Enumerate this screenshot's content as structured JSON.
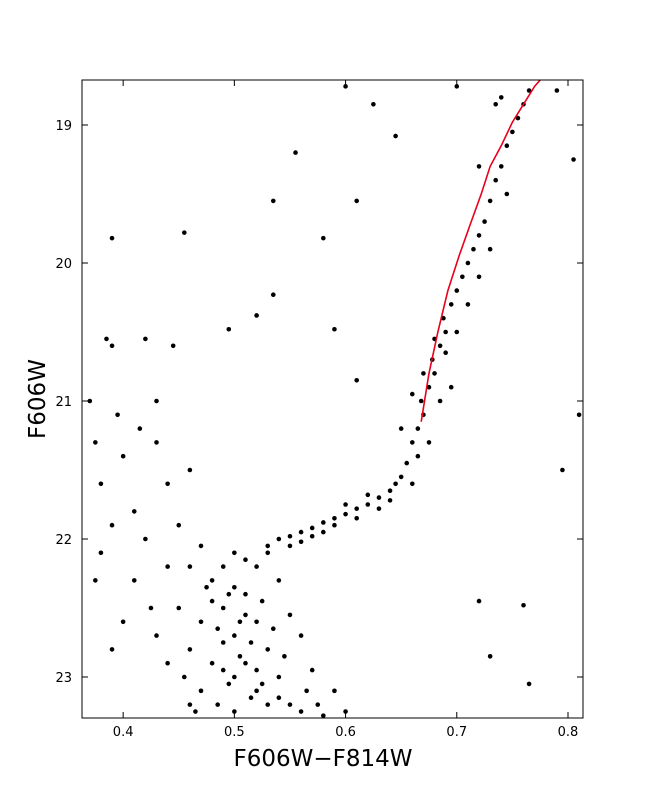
{
  "chart_data": {
    "type": "scatter",
    "x_label": "F606W−F814W",
    "y_label": "F606W",
    "xlim": [
      0.363,
      0.8135
    ],
    "ylim": [
      23.297,
      18.674
    ],
    "xticks": [
      0.4,
      0.5,
      0.6,
      0.7,
      0.8
    ],
    "yticks": [
      19,
      20,
      21,
      22,
      23
    ],
    "series": [
      {
        "color": "#000000",
        "x": [
          0.48,
          0.49,
          0.5,
          0.51,
          0.52,
          0.47,
          0.46,
          0.5,
          0.53,
          0.49,
          0.51,
          0.52,
          0.48,
          0.47,
          0.5,
          0.54,
          0.55,
          0.56,
          0.53,
          0.45,
          0.46,
          0.5,
          0.52,
          0.54,
          0.49,
          0.51,
          0.48,
          0.505,
          0.495,
          0.515,
          0.485,
          0.475,
          0.525,
          0.535,
          0.545,
          0.565,
          0.575,
          0.58,
          0.44,
          0.455,
          0.465,
          0.49,
          0.5,
          0.51,
          0.53,
          0.47,
          0.56,
          0.57,
          0.52,
          0.505,
          0.495,
          0.485,
          0.515,
          0.525,
          0.54,
          0.6,
          0.59,
          0.43,
          0.46,
          0.55,
          0.53,
          0.54,
          0.55,
          0.56,
          0.57,
          0.58,
          0.59,
          0.6,
          0.61,
          0.62,
          0.63,
          0.64,
          0.645,
          0.55,
          0.57,
          0.59,
          0.61,
          0.63,
          0.6,
          0.62,
          0.65,
          0.66,
          0.64,
          0.58,
          0.56,
          0.655,
          0.66,
          0.665,
          0.67,
          0.668,
          0.675,
          0.68,
          0.678,
          0.685,
          0.69,
          0.688,
          0.695,
          0.7,
          0.705,
          0.71,
          0.715,
          0.72,
          0.725,
          0.73,
          0.735,
          0.74,
          0.745,
          0.75,
          0.755,
          0.76,
          0.765,
          0.65,
          0.66,
          0.67,
          0.68,
          0.69,
          0.7,
          0.685,
          0.695,
          0.675,
          0.665,
          0.71,
          0.72,
          0.73,
          0.745,
          0.72,
          0.74,
          0.37,
          0.375,
          0.38,
          0.39,
          0.38,
          0.385,
          0.39,
          0.4,
          0.41,
          0.42,
          0.43,
          0.44,
          0.41,
          0.4,
          0.39,
          0.42,
          0.445,
          0.43,
          0.45,
          0.46,
          0.415,
          0.395,
          0.375,
          0.44,
          0.425,
          0.39,
          0.455,
          0.535,
          0.61,
          0.58,
          0.555,
          0.535,
          0.495,
          0.52,
          0.59,
          0.61,
          0.7,
          0.735,
          0.805,
          0.81,
          0.795,
          0.76,
          0.72,
          0.73,
          0.765,
          0.625,
          0.6,
          0.645,
          0.79
        ],
        "values": [
          22.3,
          22.5,
          22.7,
          22.9,
          23.1,
          22.6,
          22.8,
          23.0,
          23.2,
          22.2,
          22.4,
          22.6,
          22.9,
          23.1,
          23.25,
          23.0,
          23.2,
          23.25,
          22.8,
          22.5,
          22.2,
          22.1,
          22.2,
          22.3,
          22.75,
          22.55,
          22.45,
          22.85,
          23.05,
          23.15,
          23.2,
          22.35,
          22.45,
          22.65,
          22.85,
          23.1,
          23.2,
          23.28,
          22.9,
          23.0,
          23.25,
          22.95,
          22.35,
          22.15,
          22.1,
          22.05,
          22.7,
          22.95,
          22.95,
          22.6,
          22.4,
          22.65,
          22.75,
          23.05,
          23.15,
          23.25,
          23.1,
          22.7,
          23.2,
          22.55,
          22.05,
          22.0,
          21.98,
          21.95,
          21.92,
          21.88,
          21.85,
          21.82,
          21.78,
          21.75,
          21.7,
          21.65,
          21.6,
          22.05,
          21.98,
          21.9,
          21.85,
          21.78,
          21.75,
          21.68,
          21.55,
          21.6,
          21.72,
          21.95,
          22.02,
          21.45,
          21.3,
          21.2,
          21.1,
          21.0,
          20.9,
          20.8,
          20.7,
          20.6,
          20.5,
          20.4,
          20.3,
          20.2,
          20.1,
          20.0,
          19.9,
          19.8,
          19.7,
          19.55,
          19.4,
          19.3,
          19.15,
          19.05,
          18.95,
          18.85,
          18.75,
          21.2,
          20.95,
          20.8,
          20.55,
          20.65,
          20.5,
          21.0,
          20.9,
          21.3,
          21.4,
          20.3,
          20.1,
          19.9,
          19.5,
          19.3,
          18.8,
          21.0,
          21.3,
          21.6,
          21.9,
          22.1,
          20.55,
          20.6,
          21.4,
          21.8,
          22.0,
          21.3,
          21.6,
          22.3,
          22.6,
          22.8,
          20.55,
          20.6,
          21.0,
          21.9,
          21.5,
          21.2,
          21.1,
          22.3,
          22.2,
          22.5,
          19.82,
          19.78,
          19.55,
          19.55,
          19.82,
          19.2,
          20.23,
          20.48,
          20.38,
          20.48,
          20.85,
          18.72,
          18.85,
          19.25,
          21.1,
          21.5,
          22.48,
          22.45,
          22.85,
          23.05,
          18.85,
          18.72,
          19.08,
          18.75
        ]
      },
      {
        "type": "line",
        "color": "#e8001c",
        "x": [
          0.668,
          0.675,
          0.683,
          0.692,
          0.702,
          0.713,
          0.722,
          0.73,
          0.74,
          0.75,
          0.76,
          0.77,
          0.775
        ],
        "values": [
          21.15,
          20.8,
          20.5,
          20.2,
          19.95,
          19.7,
          19.5,
          19.3,
          19.15,
          18.98,
          18.85,
          18.72,
          18.674
        ]
      }
    ]
  }
}
